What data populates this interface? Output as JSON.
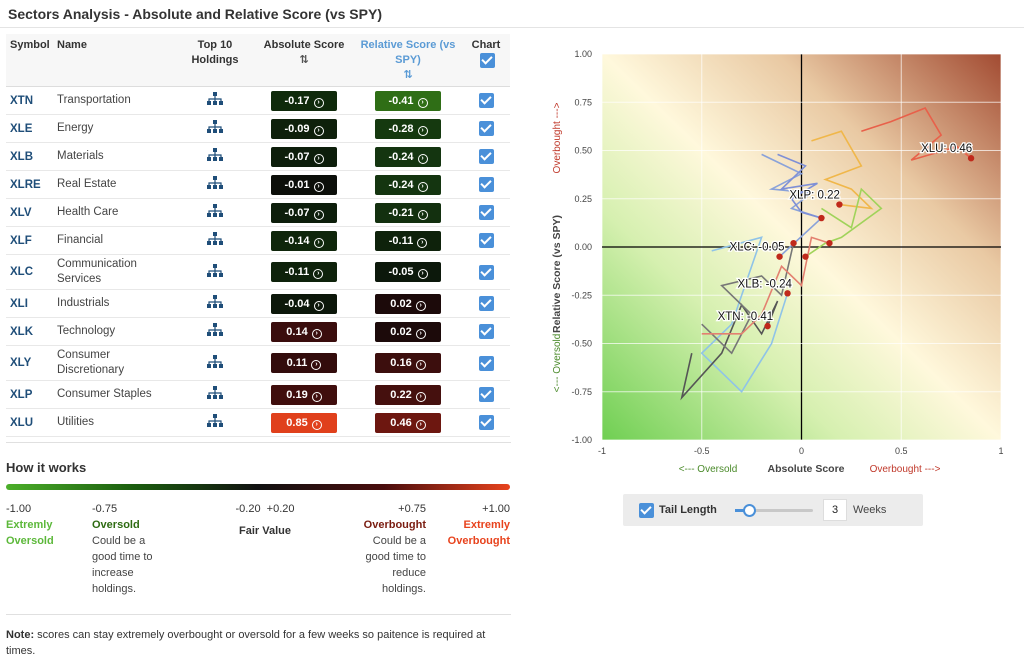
{
  "title": "Sectors Analysis - Absolute and Relative Score (vs SPY)",
  "table": {
    "headers": {
      "symbol": "Symbol",
      "name": "Name",
      "holdings": "Top 10 Holdings",
      "absolute": "Absolute Score",
      "relative": "Relative Score (vs SPY)",
      "chart": "Chart"
    },
    "rows": [
      {
        "symbol": "XTN",
        "name": "Transportation",
        "abs": "-0.17",
        "rel": "-0.41",
        "absColor": "#0f2a0b",
        "relColor": "#2f6e16"
      },
      {
        "symbol": "XLE",
        "name": "Energy",
        "abs": "-0.09",
        "rel": "-0.28",
        "absColor": "#0e200b",
        "relColor": "#15390f"
      },
      {
        "symbol": "XLB",
        "name": "Materials",
        "abs": "-0.07",
        "rel": "-0.24",
        "absColor": "#0d1e0b",
        "relColor": "#143510"
      },
      {
        "symbol": "XLRE",
        "name": "Real Estate",
        "abs": "-0.01",
        "rel": "-0.24",
        "absColor": "#0c0f0a",
        "relColor": "#143510"
      },
      {
        "symbol": "XLV",
        "name": "Health Care",
        "abs": "-0.07",
        "rel": "-0.21",
        "absColor": "#0d1e0b",
        "relColor": "#13300f"
      },
      {
        "symbol": "XLF",
        "name": "Financial",
        "abs": "-0.14",
        "rel": "-0.11",
        "absColor": "#0f260b",
        "relColor": "#0e220b"
      },
      {
        "symbol": "XLC",
        "name": "Communication Services",
        "abs": "-0.11",
        "rel": "-0.05",
        "absColor": "#0e220b",
        "relColor": "#0c180b"
      },
      {
        "symbol": "XLI",
        "name": "Industrials",
        "abs": "-0.04",
        "rel": "0.02",
        "absColor": "#0c170a",
        "relColor": "#1c0a0a"
      },
      {
        "symbol": "XLK",
        "name": "Technology",
        "abs": "0.14",
        "rel": "0.02",
        "absColor": "#3a0d0d",
        "relColor": "#1c0a0a"
      },
      {
        "symbol": "XLY",
        "name": "Consumer Discretionary",
        "abs": "0.11",
        "rel": "0.16",
        "absColor": "#330c0c",
        "relColor": "#3c0e0d"
      },
      {
        "symbol": "XLP",
        "name": "Consumer Staples",
        "abs": "0.19",
        "rel": "0.22",
        "absColor": "#400e0d",
        "relColor": "#45100e"
      },
      {
        "symbol": "XLU",
        "name": "Utilities",
        "abs": "0.85",
        "rel": "0.46",
        "absColor": "#e0401c",
        "relColor": "#6d1710"
      }
    ]
  },
  "how": {
    "title": "How it works",
    "labels": [
      {
        "value": "-1.00",
        "name": "Extremly Oversold",
        "desc": ""
      },
      {
        "value": "-0.75",
        "name": "Oversold",
        "desc": "Could be a good time to increase holdings."
      },
      {
        "value": "-0.20  +0.20",
        "name": "Fair Value",
        "desc": ""
      },
      {
        "value": "+0.75",
        "name": "Overbought",
        "desc": "Could be a good time to reduce holdings."
      },
      {
        "value": "+1.00",
        "name": "Extremly Overbought",
        "desc": ""
      }
    ]
  },
  "note": {
    "bold": "Note:",
    "text": " scores can stay extremely overbought or oversold for a few weeks so paitence is required at times."
  },
  "chart_data": {
    "type": "scatter",
    "xlabel": "Absolute Score",
    "ylabel": "Relative Score (vs SPY)",
    "xlabel_left": "<--- Oversold",
    "xlabel_right": "Overbought --->",
    "ylabel_top": "Overbought --->",
    "ylabel_bottom": "<--- Oversold",
    "xlim": [
      -1,
      1
    ],
    "ylim": [
      -1,
      1
    ],
    "xticks": [
      "-1",
      "-0.5",
      "0",
      "0.5",
      "1"
    ],
    "yticks": [
      "1.00",
      "0.75",
      "0.50",
      "0.25",
      "0.00",
      "-0.25",
      "-0.50",
      "-0.75",
      "-1.00"
    ],
    "grid": true,
    "labels": [
      {
        "text": "XLU: 0.46",
        "x": 0.85,
        "y": 0.46
      },
      {
        "text": "XLP: 0.22",
        "x": 0.19,
        "y": 0.22
      },
      {
        "text": "XLC: -0.05",
        "x": -0.11,
        "y": -0.05
      },
      {
        "text": "XLB: -0.24",
        "x": -0.07,
        "y": -0.24
      },
      {
        "text": "XTN: -0.41",
        "x": -0.17,
        "y": -0.41
      }
    ],
    "series": [
      {
        "color": "#e8604a",
        "points": [
          [
            0.3,
            0.6
          ],
          [
            0.45,
            0.65
          ],
          [
            0.62,
            0.72
          ],
          [
            0.7,
            0.58
          ],
          [
            0.55,
            0.45
          ],
          [
            0.78,
            0.52
          ],
          [
            0.85,
            0.46
          ]
        ]
      },
      {
        "color": "#f0b74a",
        "points": [
          [
            0.05,
            0.55
          ],
          [
            0.2,
            0.6
          ],
          [
            0.3,
            0.42
          ],
          [
            0.12,
            0.35
          ],
          [
            0.25,
            0.3
          ],
          [
            0.35,
            0.2
          ],
          [
            0.19,
            0.22
          ]
        ]
      },
      {
        "color": "#8aa2d9",
        "points": [
          [
            -0.2,
            0.48
          ],
          [
            0.0,
            0.38
          ],
          [
            -0.15,
            0.3
          ],
          [
            0.05,
            0.28
          ],
          [
            -0.05,
            0.2
          ],
          [
            0.1,
            0.15
          ],
          [
            -0.11,
            -0.05
          ]
        ]
      },
      {
        "color": "#a0d35a",
        "points": [
          [
            0.1,
            0.2
          ],
          [
            0.25,
            0.1
          ],
          [
            0.3,
            0.3
          ],
          [
            0.4,
            0.2
          ],
          [
            0.2,
            0.05
          ],
          [
            0.12,
            0.02
          ],
          [
            0.02,
            -0.05
          ]
        ]
      },
      {
        "color": "#7e8fd6",
        "points": [
          [
            -0.12,
            0.48
          ],
          [
            0.02,
            0.42
          ],
          [
            -0.1,
            0.3
          ],
          [
            0.08,
            0.33
          ],
          [
            -0.05,
            0.25
          ],
          [
            0.0,
            0.18
          ],
          [
            0.1,
            0.15
          ]
        ]
      },
      {
        "color": "#8fc3e8",
        "points": [
          [
            -0.45,
            -0.02
          ],
          [
            -0.2,
            0.05
          ],
          [
            -0.35,
            -0.4
          ],
          [
            -0.5,
            -0.55
          ],
          [
            -0.3,
            -0.75
          ],
          [
            -0.15,
            -0.5
          ],
          [
            -0.07,
            -0.24
          ]
        ]
      },
      {
        "color": "#555",
        "points": [
          [
            -0.55,
            -0.55
          ],
          [
            -0.6,
            -0.78
          ],
          [
            -0.4,
            -0.55
          ],
          [
            -0.3,
            -0.3
          ],
          [
            -0.2,
            -0.45
          ],
          [
            -0.12,
            -0.28
          ],
          [
            -0.17,
            -0.41
          ]
        ]
      },
      {
        "color": "#777",
        "points": [
          [
            -0.5,
            -0.4
          ],
          [
            -0.35,
            -0.55
          ],
          [
            -0.25,
            -0.35
          ],
          [
            -0.4,
            -0.2
          ],
          [
            -0.2,
            -0.15
          ],
          [
            -0.1,
            -0.25
          ],
          [
            -0.04,
            0.02
          ]
        ]
      },
      {
        "color": "#e38070",
        "points": [
          [
            -0.5,
            -0.45
          ],
          [
            -0.3,
            -0.45
          ],
          [
            -0.2,
            -0.35
          ],
          [
            -0.1,
            -0.1
          ],
          [
            0.0,
            -0.2
          ],
          [
            0.05,
            0.05
          ],
          [
            0.14,
            0.02
          ]
        ]
      }
    ]
  },
  "tail": {
    "label": "Tail Length",
    "value": "3",
    "unit": "Weeks"
  }
}
